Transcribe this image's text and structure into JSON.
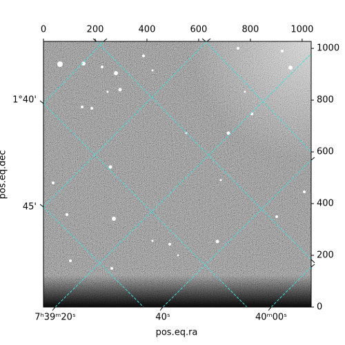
{
  "chart_data": {
    "type": "image",
    "xlabel": "pos.eq.ra",
    "ylabel": "pos.eq.dec",
    "xlim": [
      0,
      1035
    ],
    "ylim": [
      0,
      1027
    ],
    "xticks": [
      0,
      200,
      400,
      600,
      800,
      1000
    ],
    "yticks": [
      0,
      200,
      400,
      600,
      800,
      1000
    ],
    "ra_tick_labels": [
      "7ʰ39ᵐ20ˢ",
      "40ˢ",
      "40ᵐ00ˢ"
    ],
    "dec_tick_labels": [
      "1°40'",
      "45'"
    ],
    "grid_color": "#40e0e0"
  }
}
